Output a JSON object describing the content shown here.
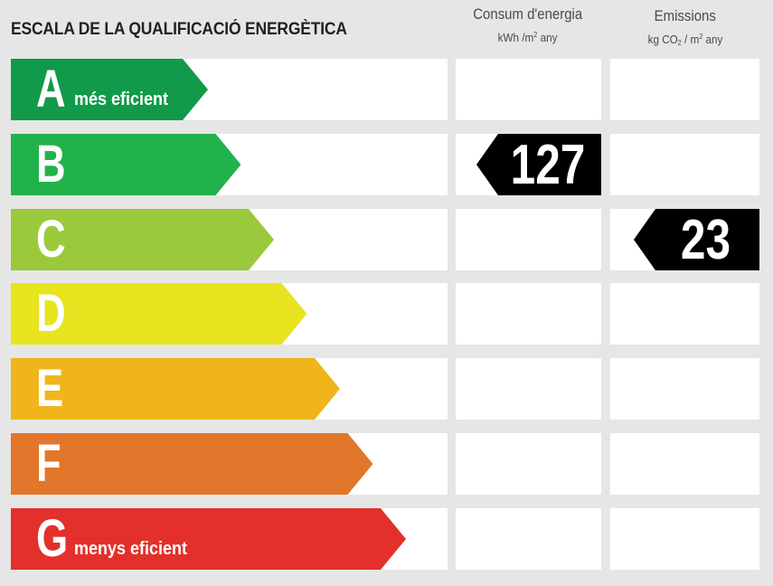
{
  "title": "ESCALA DE LA QUALIFICACIÓ ENERGÈTICA",
  "columns": {
    "consum": {
      "title": "Consum d'energia",
      "unit_prefix": "kWh /m",
      "unit_sup": "2",
      "unit_suffix": " any"
    },
    "emissions": {
      "title": "Emissions",
      "unit_prefix": "kg CO",
      "unit_sub": "2",
      "unit_mid": " / m",
      "unit_sup": "2",
      "unit_suffix": " any"
    }
  },
  "ratings": [
    {
      "letter": "A",
      "label": "més eficient",
      "color": "#119a4a"
    },
    {
      "letter": "B",
      "label": "",
      "color": "#22b24c"
    },
    {
      "letter": "C",
      "label": "",
      "color": "#9ac93c"
    },
    {
      "letter": "D",
      "label": "",
      "color": "#e8e41f"
    },
    {
      "letter": "E",
      "label": "",
      "color": "#efb51b"
    },
    {
      "letter": "F",
      "label": "",
      "color": "#e2762a"
    },
    {
      "letter": "G",
      "label": "menys eficient",
      "color": "#e4302b"
    }
  ],
  "consumption": {
    "value": "127",
    "rating": "B"
  },
  "emissions_value": {
    "value": "23",
    "rating": "C"
  }
}
